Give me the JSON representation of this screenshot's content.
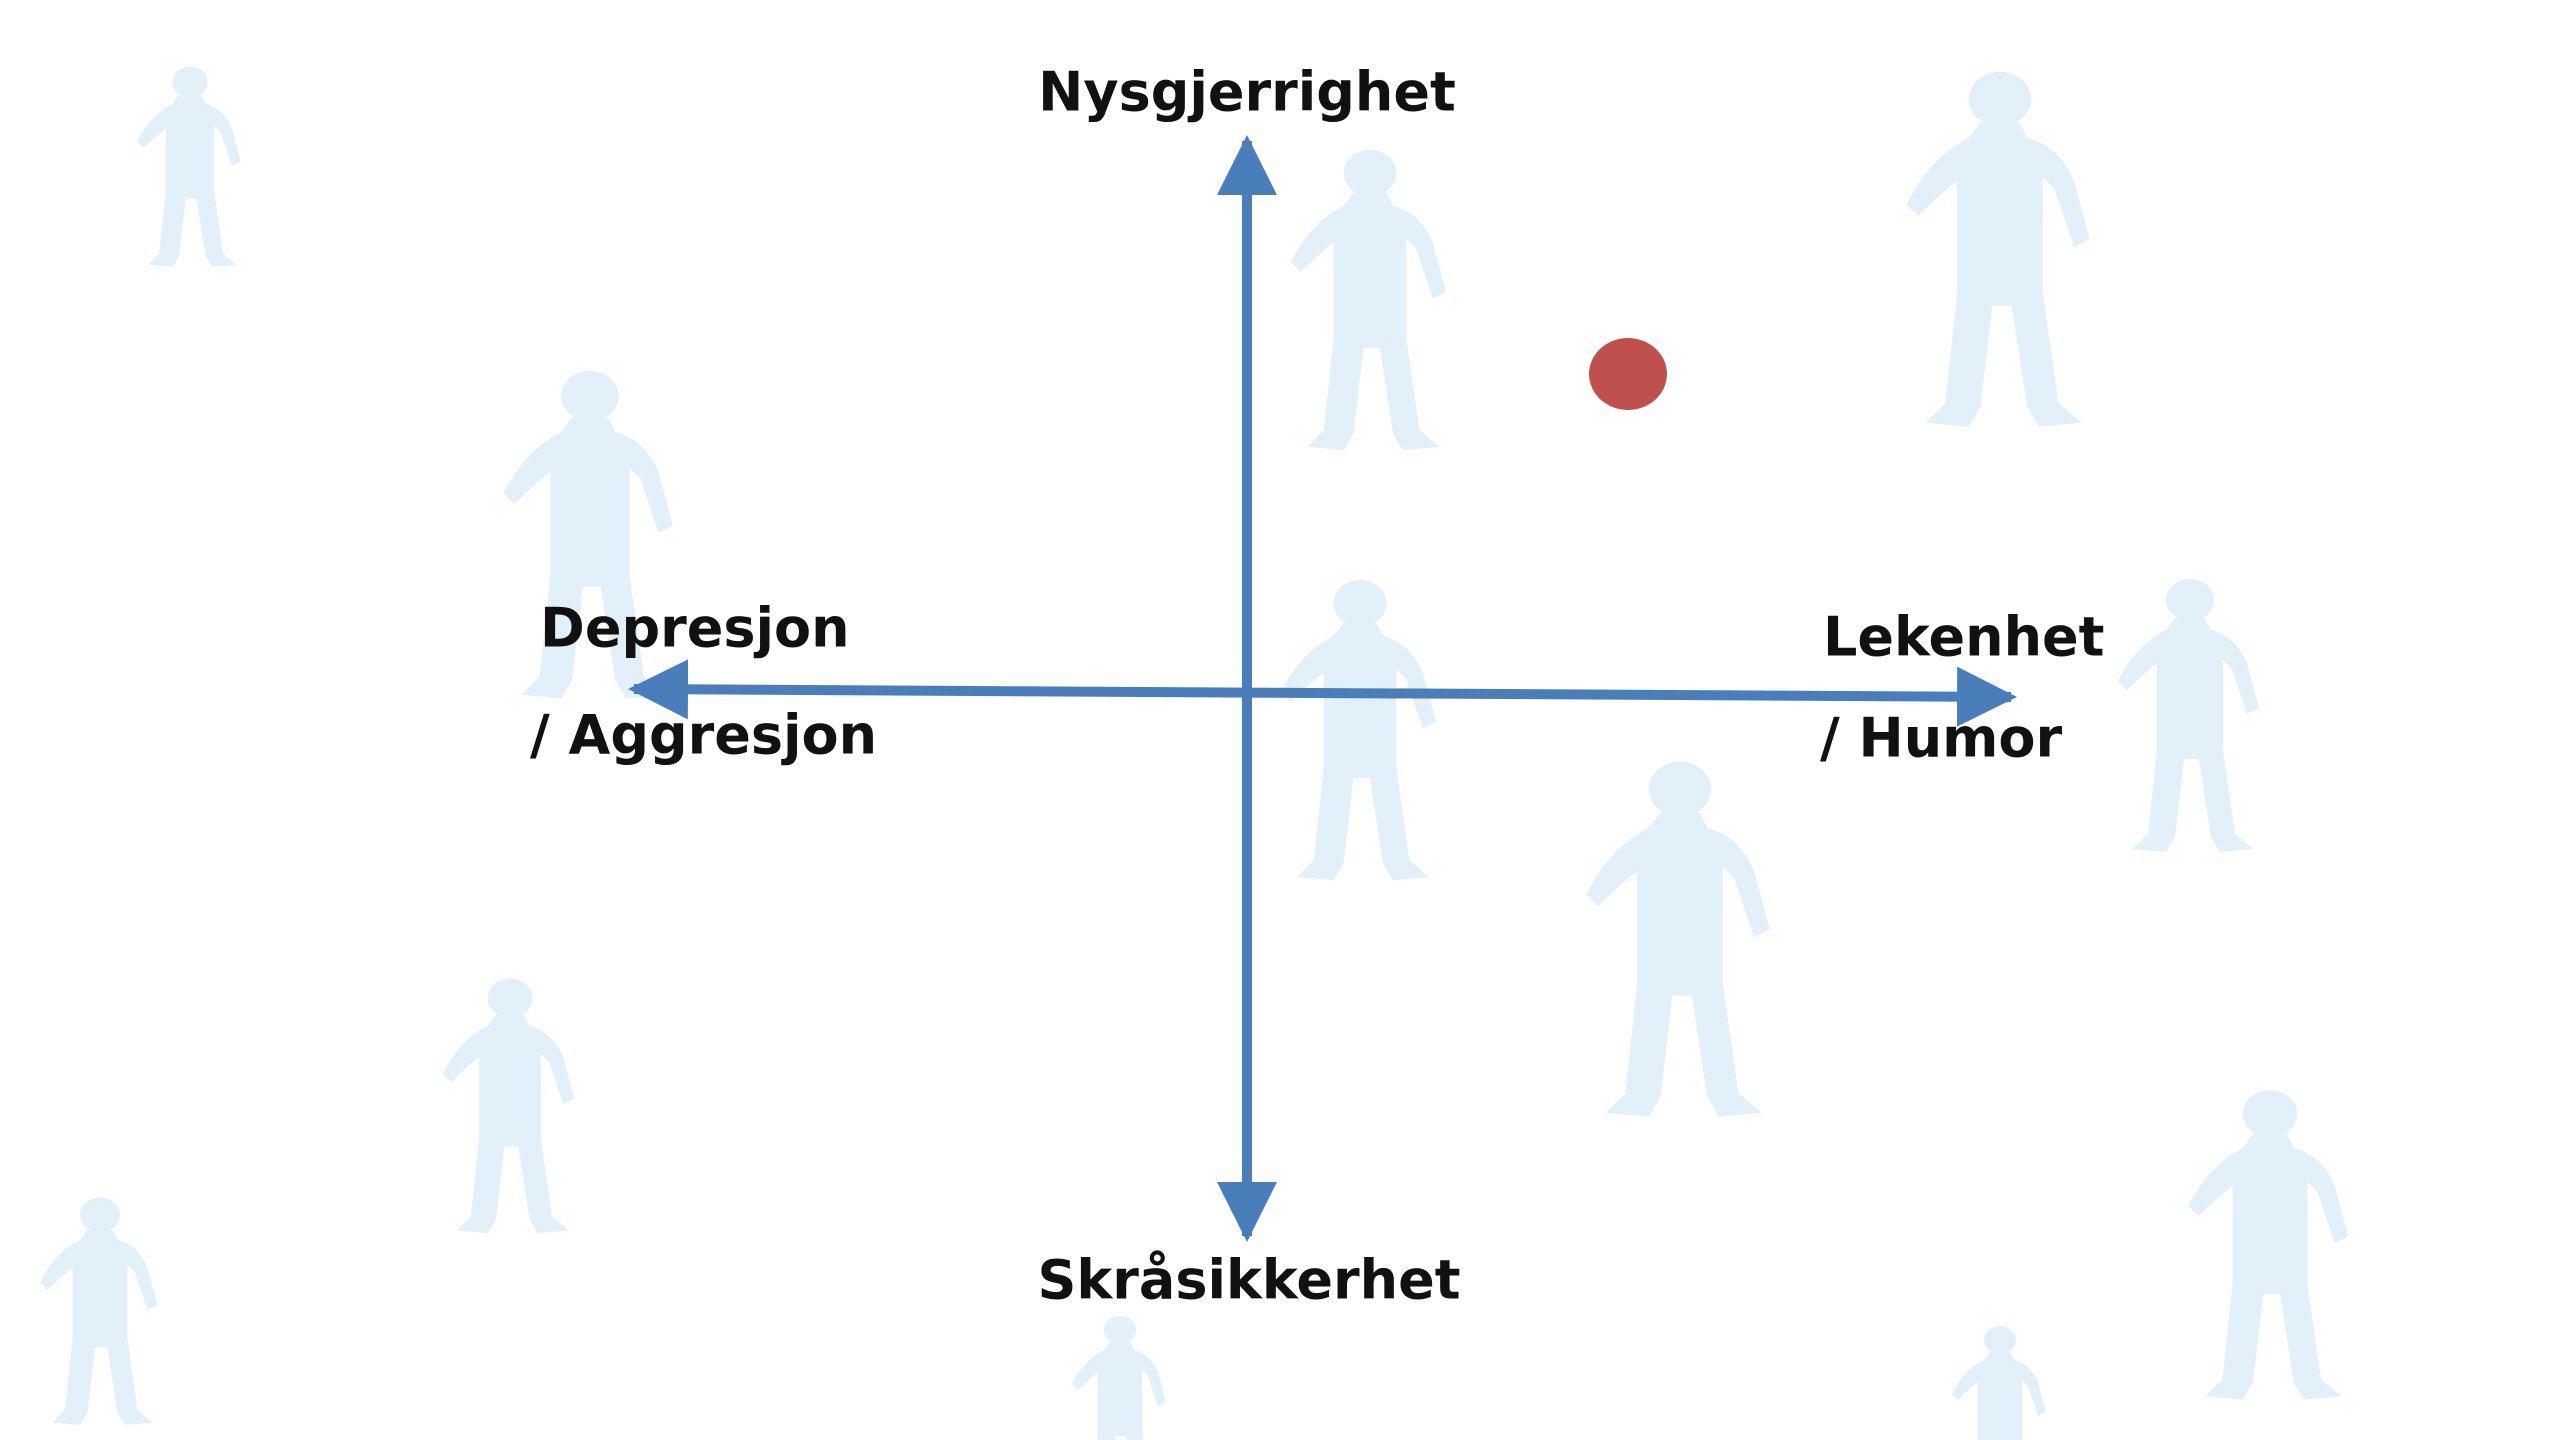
{
  "axes": {
    "top": "Nysgjerrighet",
    "bottom": "Skråsikkerhet",
    "left": [
      "Depresjon",
      "/ Aggresjon"
    ],
    "right": [
      "Lekenhet",
      "/ Humor"
    ]
  }
}
